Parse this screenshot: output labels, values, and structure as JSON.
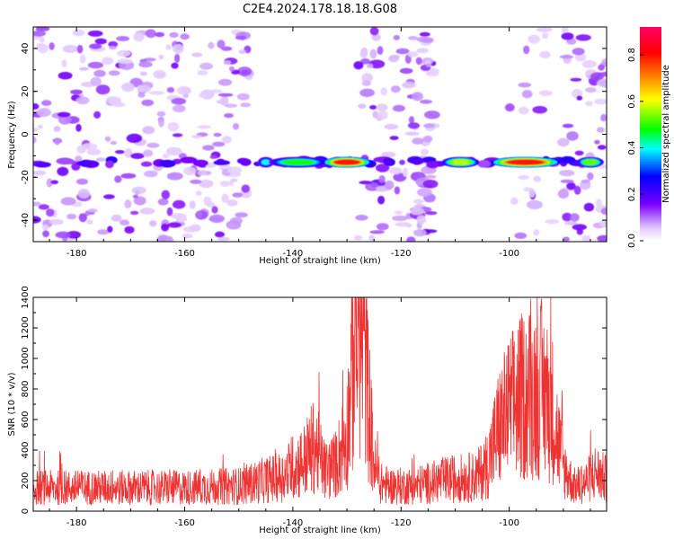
{
  "title": "C2E4.2024.178.18.18.G08",
  "colorbar": {
    "label": "Normalized spectral amplitude",
    "range": [
      0.0,
      0.92
    ],
    "ticks": [
      0.0,
      0.2,
      0.4,
      0.6,
      0.8
    ],
    "tick_labels": [
      "0.0",
      "0.2",
      "0.4",
      "0.6",
      "0.8"
    ],
    "colormap": [
      "#ffffff",
      "#e0c8ff",
      "#7a00ff",
      "#0000ff",
      "#00ffff",
      "#00ff00",
      "#ffff00",
      "#ff8000",
      "#ff0000",
      "#ff0066"
    ]
  },
  "chart_data": [
    {
      "type": "heatmap",
      "xlabel": "Height of straight line (km)",
      "ylabel": "Frequency (Hz)",
      "xlim": [
        -188,
        -82
      ],
      "ylim": [
        -50,
        50
      ],
      "xticks": [
        -180,
        -160,
        -140,
        -120,
        -100
      ],
      "xtick_labels": [
        "-180",
        "-160",
        "-140",
        "-120",
        "-100"
      ],
      "yticks": [
        -40,
        -20,
        0,
        20,
        40
      ],
      "ytick_labels": [
        "-40",
        "-20",
        "0",
        "20",
        "40"
      ],
      "band_frequency": -13,
      "band_segments": [
        {
          "x": [
            -146,
            -144
          ],
          "peak": 0.45
        },
        {
          "x": [
            -144,
            -134
          ],
          "peak": 0.55
        },
        {
          "x": [
            -134,
            -126
          ],
          "peak": 0.9
        },
        {
          "x": [
            -112,
            -106
          ],
          "peak": 0.65
        },
        {
          "x": [
            -103,
            -91
          ],
          "peak": 0.9
        },
        {
          "x": [
            -87,
            -83
          ],
          "peak": 0.6
        }
      ],
      "noisy_regions": [
        {
          "x": [
            -188,
            -148
          ],
          "density": "high"
        },
        {
          "x": [
            -128,
            -118
          ],
          "density": "medium"
        },
        {
          "x": [
            -118,
            -114
          ],
          "density": "medium"
        },
        {
          "x": [
            -100,
            -92
          ],
          "density": "low"
        },
        {
          "x": [
            -90,
            -82
          ],
          "density": "medium"
        }
      ]
    },
    {
      "type": "line",
      "xlabel": "Height of straight line (km)",
      "ylabel": "SNR (10 * v/v)",
      "xlim": [
        -188,
        -82
      ],
      "ylim": [
        0,
        1400
      ],
      "xticks": [
        -180,
        -160,
        -140,
        -120,
        -100
      ],
      "xtick_labels": [
        "-180",
        "-160",
        "-140",
        "-120",
        "-100"
      ],
      "yticks": [
        0,
        200,
        400,
        600,
        800,
        1000,
        1200,
        1400
      ],
      "ytick_labels": [
        "0",
        "200",
        "400",
        "600",
        "800",
        "1000",
        "1200",
        "1400"
      ],
      "color": "#ee3333",
      "envelope": {
        "x": [
          -188,
          -175,
          -160,
          -150,
          -145,
          -142,
          -140,
          -138,
          -136,
          -134,
          -132,
          -130,
          -129,
          -128,
          -127,
          -126,
          -125,
          -124,
          -122,
          -118,
          -112,
          -106,
          -104,
          -102,
          -100,
          -98,
          -96,
          -94,
          -92,
          -90,
          -88,
          -86,
          -84,
          -82
        ],
        "y": [
          150,
          150,
          150,
          160,
          200,
          220,
          280,
          320,
          420,
          260,
          300,
          500,
          900,
          1280,
          1150,
          700,
          300,
          180,
          160,
          160,
          200,
          220,
          300,
          520,
          650,
          720,
          760,
          780,
          650,
          280,
          160,
          180,
          250,
          200
        ]
      }
    }
  ]
}
